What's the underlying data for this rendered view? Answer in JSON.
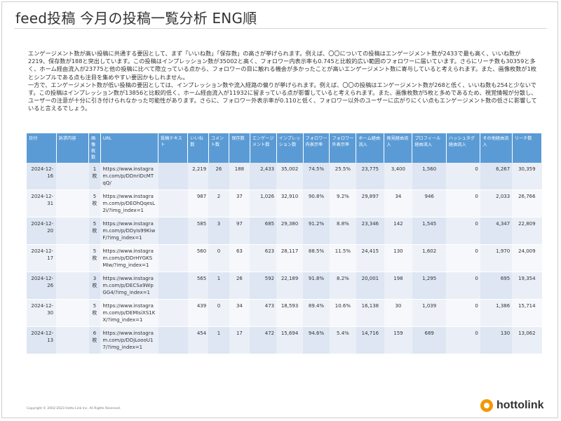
{
  "slide": {
    "title": "feed投稿 今月の投稿一覧分析 ENG順",
    "summary": [
      "エンゲージメント数が高い投稿に共通する要因として、まず「いいね数」「保存数」の高さが挙げられます。例えば、〇〇についての投稿はエンゲージメント数が2433で最も高く、いいね数が2219、保存数が188と突出しています。この投稿はインプレッション数が35002と高く、フォロワー内表示率も0.745と比較的広い範囲のフォロワーに届いています。さらにリーチ数も30359と多く、ホーム経由流入が23775と他の投稿に比べて際立っている点から、フォロワーの目に触れる機会が多かったことが高いエンゲージメント数に寄与していると考えられます。また、画像枚数が1枚とシンプルである点も注目を集めやすい要因かもしれません。",
      "一方で、エンゲージメント数が低い投稿の要因としては、インプレッション数や流入経路の偏りが挙げられます。例えば、〇〇の投稿はエンゲージメント数が268と低く、いいね数も254と少ないです。この投稿はインプレッション数が13856と比較的低く、ホーム経由流入が11932に留まっている点が影響していると考えられます。また、画像枚数が5枚と多めであるため、視覚情報が分散し、ユーザーの注意が十分に引き付けられなかった可能性があります。さらに、フォロワー外表示率が0.110と低く、フォロワー以外のユーザーに広がりにくい点もエンゲージメント数の低さに影響していると言えるでしょう。"
    ]
  },
  "table": {
    "headers": [
      "日付",
      "訴求内容",
      "画像枚数",
      "URL",
      "投稿テキスト",
      "いいね数",
      "コメント数",
      "保存数",
      "エンゲージメント数",
      "インプレッション数",
      "フォロワー内表示率",
      "フォロワー外表示率",
      "ホーム経由流入",
      "発見経由流入",
      "プロフィール経由流入",
      "ハッシュタグ経由流入",
      "その他経由流入",
      "リーチ数"
    ],
    "rows": [
      {
        "date": "2024-12-16",
        "appeal": "",
        "images": "1枚",
        "url": "https://www.instagram.com/p/DDnriDcMTqQ/",
        "text": "",
        "likes": "2,219",
        "comments": "26",
        "saves": "188",
        "engagement": "2,433",
        "impressions": "35,002",
        "follower_in": "74.5%",
        "follower_out": "25.5%",
        "home": "23,775",
        "discover": "3,400",
        "profile": "1,560",
        "hashtag": "0",
        "other": "6,267",
        "reach": "30,359"
      },
      {
        "date": "2024-12-31",
        "appeal": "",
        "images": "5枚",
        "url": "https://www.instagram.com/p/DEOhQqesL2i/?img_index=1",
        "text": "",
        "likes": "987",
        "comments": "2",
        "saves": "37",
        "engagement": "1,026",
        "impressions": "32,910",
        "follower_in": "90.8%",
        "follower_out": "9.2%",
        "home": "29,897",
        "discover": "34",
        "profile": "946",
        "hashtag": "0",
        "other": "2,033",
        "reach": "26,766"
      },
      {
        "date": "2024-12-20",
        "appeal": "",
        "images": "5枚",
        "url": "https://www.instagram.com/p/DDyIs99KiwF/?img_index=1",
        "text": "",
        "likes": "585",
        "comments": "3",
        "saves": "97",
        "engagement": "685",
        "impressions": "29,380",
        "follower_in": "91.2%",
        "follower_out": "8.8%",
        "home": "23,346",
        "discover": "142",
        "profile": "1,545",
        "hashtag": "0",
        "other": "4,347",
        "reach": "22,809"
      },
      {
        "date": "2024-12-17",
        "appeal": "",
        "images": "5枚",
        "url": "https://www.instagram.com/p/DDrHYGKSMIw/?img_index=1",
        "text": "",
        "likes": "560",
        "comments": "0",
        "saves": "63",
        "engagement": "623",
        "impressions": "28,117",
        "follower_in": "88.5%",
        "follower_out": "11.5%",
        "home": "24,415",
        "discover": "130",
        "profile": "1,602",
        "hashtag": "0",
        "other": "1,970",
        "reach": "24,009"
      },
      {
        "date": "2024-12-26",
        "appeal": "",
        "images": "3枚",
        "url": "https://www.instagram.com/p/DECSa9WpGG4/?img_index=1",
        "text": "",
        "likes": "565",
        "comments": "1",
        "saves": "26",
        "engagement": "592",
        "impressions": "22,189",
        "follower_in": "91.8%",
        "follower_out": "8.2%",
        "home": "20,001",
        "discover": "198",
        "profile": "1,295",
        "hashtag": "0",
        "other": "695",
        "reach": "19,354"
      },
      {
        "date": "2024-12-30",
        "appeal": "",
        "images": "5枚",
        "url": "https://www.instagram.com/p/DEMIsiXS1KX/?img_index=1",
        "text": "",
        "likes": "439",
        "comments": "0",
        "saves": "34",
        "engagement": "473",
        "impressions": "18,593",
        "follower_in": "89.4%",
        "follower_out": "10.6%",
        "home": "16,138",
        "discover": "30",
        "profile": "1,039",
        "hashtag": "0",
        "other": "1,386",
        "reach": "15,714"
      },
      {
        "date": "2024-12-13",
        "appeal": "",
        "images": "6枚",
        "url": "https://www.instagram.com/p/DDjLoooU17/?img_index=1",
        "text": "",
        "likes": "454",
        "comments": "1",
        "saves": "17",
        "engagement": "472",
        "impressions": "15,694",
        "follower_in": "94.6%",
        "follower_out": "5.4%",
        "home": "14,716",
        "discover": "159",
        "profile": "689",
        "hashtag": "0",
        "other": "130",
        "reach": "13,062"
      }
    ]
  },
  "footer": {
    "copyright": "Copyright © 2002-2023 Hotto Link Inc. All Rights Reserved.",
    "logo_text": "hottolink",
    "logo_color": "#f39800"
  },
  "colors": {
    "header_bg": "#5b9bd5",
    "row_band": "#eaeff7"
  }
}
